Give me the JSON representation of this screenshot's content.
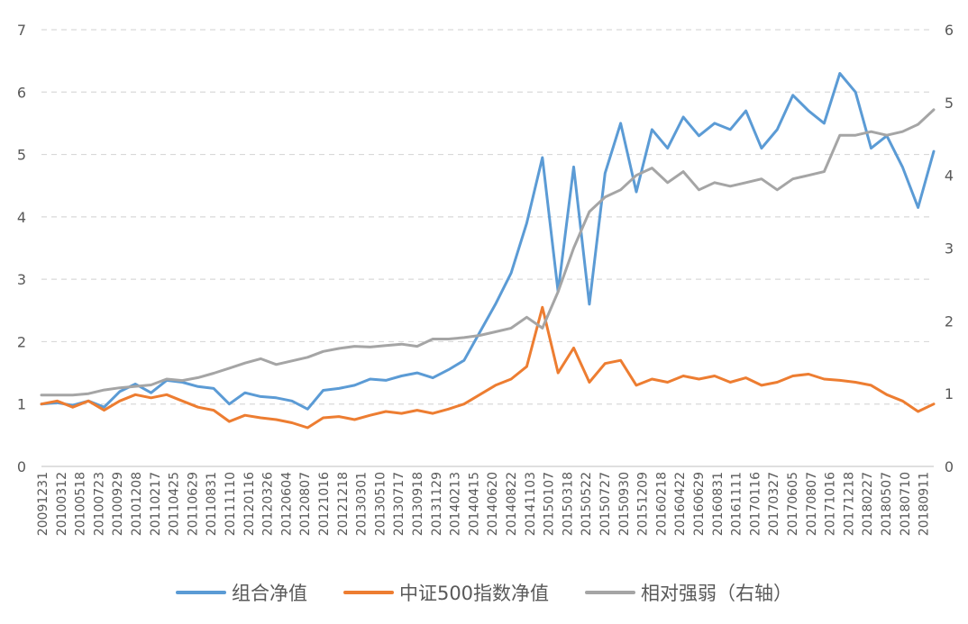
{
  "chart_data": {
    "type": "line",
    "title": "",
    "xlabel": "",
    "ylabel": "",
    "ylim": [
      0,
      7
    ],
    "y2lim": [
      0,
      6
    ],
    "y_ticks": [
      "0",
      "1",
      "2",
      "3",
      "4",
      "5",
      "6",
      "7"
    ],
    "y2_ticks": [
      "0",
      "1",
      "2",
      "3",
      "4",
      "5",
      "6"
    ],
    "grid": "horizontal dashed",
    "legend_position": "bottom",
    "x_tick_labels": [
      "20091231",
      "20100312",
      "20100518",
      "20100723",
      "20100929",
      "20101208",
      "20110217",
      "20110425",
      "20110629",
      "20110831",
      "20111110",
      "20120116",
      "20120326",
      "20120604",
      "20120807",
      "20121016",
      "20121218",
      "20130301",
      "20130510",
      "20130717",
      "20130918",
      "20131129",
      "20140213",
      "20140415",
      "20140620",
      "20140822",
      "20141103",
      "20150107",
      "20150318",
      "20150522",
      "20150727",
      "20150930",
      "20151209",
      "20160218",
      "20160422",
      "20160629",
      "20160831",
      "20161111",
      "20170116",
      "20170327",
      "20170605",
      "20170807",
      "20171016",
      "20171218",
      "20180227",
      "20180507",
      "20180710",
      "20180911"
    ],
    "series": [
      {
        "name": "组合净值",
        "axis": "left",
        "color": "#5B9BD5",
        "values": [
          1.0,
          1.02,
          0.98,
          1.05,
          0.95,
          1.2,
          1.32,
          1.18,
          1.38,
          1.35,
          1.28,
          1.25,
          1.0,
          1.18,
          1.12,
          1.1,
          1.05,
          0.92,
          1.22,
          1.25,
          1.3,
          1.4,
          1.38,
          1.45,
          1.5,
          1.42,
          1.55,
          1.7,
          2.15,
          2.6,
          3.1,
          3.9,
          4.95,
          2.8,
          4.8,
          2.6,
          4.7,
          5.5,
          4.4,
          5.4,
          5.1,
          5.6,
          5.3,
          5.5,
          5.4,
          5.7,
          5.1,
          5.4,
          5.95,
          5.7,
          5.5,
          6.3,
          6.0,
          5.1,
          5.3,
          4.8,
          4.15,
          5.05
        ]
      },
      {
        "name": "中证500指数净值",
        "axis": "left",
        "color": "#ED7D31",
        "values": [
          1.0,
          1.05,
          0.95,
          1.05,
          0.9,
          1.05,
          1.15,
          1.1,
          1.15,
          1.05,
          0.95,
          0.9,
          0.72,
          0.82,
          0.78,
          0.75,
          0.7,
          0.62,
          0.78,
          0.8,
          0.75,
          0.82,
          0.88,
          0.85,
          0.9,
          0.85,
          0.92,
          1.0,
          1.15,
          1.3,
          1.4,
          1.6,
          2.55,
          1.5,
          1.9,
          1.35,
          1.65,
          1.7,
          1.3,
          1.4,
          1.35,
          1.45,
          1.4,
          1.45,
          1.35,
          1.42,
          1.3,
          1.35,
          1.45,
          1.48,
          1.4,
          1.38,
          1.35,
          1.3,
          1.15,
          1.05,
          0.88,
          1.0
        ]
      },
      {
        "name": "相对强弱（右轴）",
        "axis": "right",
        "color": "#A5A5A5",
        "values": [
          0.98,
          0.98,
          0.98,
          1.0,
          1.05,
          1.08,
          1.1,
          1.12,
          1.2,
          1.18,
          1.22,
          1.28,
          1.35,
          1.42,
          1.48,
          1.4,
          1.45,
          1.5,
          1.58,
          1.62,
          1.65,
          1.64,
          1.66,
          1.68,
          1.65,
          1.75,
          1.75,
          1.77,
          1.8,
          1.85,
          1.9,
          2.05,
          1.9,
          2.4,
          3.0,
          3.5,
          3.7,
          3.8,
          4.0,
          4.1,
          3.9,
          4.05,
          3.8,
          3.9,
          3.85,
          3.9,
          3.95,
          3.8,
          3.95,
          4.0,
          4.05,
          4.55,
          4.55,
          4.6,
          4.55,
          4.6,
          4.7,
          4.9
        ]
      }
    ]
  },
  "legend": {
    "item1": "组合净值",
    "item2": "中证500指数净值",
    "item3": "相对强弱（右轴）"
  }
}
